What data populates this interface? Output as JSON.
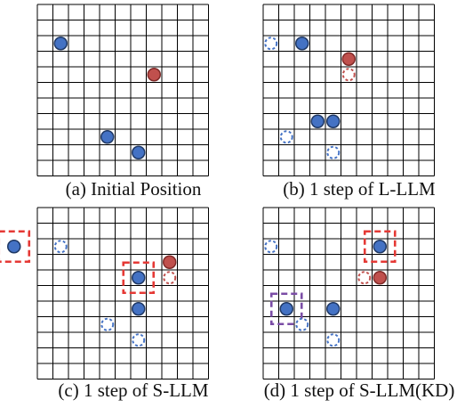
{
  "figure": {
    "colors": {
      "grid": "#000000",
      "agent_fill": "#4472C4",
      "agent_stroke": "#1F3864",
      "target_fill": "#C0504D",
      "target_stroke": "#7F2A28",
      "ghost_agent": "#4472C4",
      "ghost_target": "#C0504D",
      "highlight_red": "#E53935",
      "highlight_purple": "#7B4DA6"
    },
    "panels": [
      {
        "id": "a",
        "caption": "(a) Initial Position",
        "agents": [
          [
            1.5,
            2.5
          ],
          [
            4.5,
            8.5
          ],
          [
            6.5,
            9.5
          ]
        ],
        "targets": [
          [
            7.5,
            4.5
          ]
        ],
        "ghost_agents": [],
        "ghost_targets": [],
        "highlights": []
      },
      {
        "id": "b",
        "caption": "(b) 1 step of L-LLM",
        "agents": [
          [
            2.5,
            2.5
          ],
          [
            3.5,
            7.5
          ],
          [
            4.5,
            7.5
          ]
        ],
        "targets": [
          [
            5.5,
            3.5
          ]
        ],
        "ghost_agents": [
          [
            0.5,
            2.5
          ],
          [
            1.5,
            8.5
          ],
          [
            4.5,
            9.5
          ]
        ],
        "ghost_targets": [
          [
            5.5,
            4.5
          ]
        ],
        "highlights": []
      },
      {
        "id": "c",
        "caption": "(c) 1 step of S-LLM",
        "agents": [
          [
            -1.5,
            2.5
          ],
          [
            6.5,
            4.5
          ],
          [
            6.5,
            6.5
          ]
        ],
        "targets": [
          [
            8.5,
            3.5
          ]
        ],
        "ghost_agents": [
          [
            1.5,
            2.5
          ],
          [
            4.5,
            7.5
          ],
          [
            6.5,
            8.5
          ]
        ],
        "ghost_targets": [
          [
            8.5,
            4.5
          ]
        ],
        "highlights": [
          {
            "color": "red",
            "center": [
              -1.5,
              2.5
            ]
          },
          {
            "color": "red",
            "center": [
              6.5,
              4.5
            ]
          }
        ]
      },
      {
        "id": "d",
        "caption": "(d) 1 step of S-LLM(KD)",
        "agents": [
          [
            7.5,
            2.5
          ],
          [
            1.5,
            6.5
          ],
          [
            4.5,
            6.5
          ]
        ],
        "targets": [
          [
            7.5,
            4.5
          ]
        ],
        "ghost_agents": [
          [
            0.5,
            2.5
          ],
          [
            2.5,
            7.5
          ],
          [
            4.5,
            8.5
          ]
        ],
        "ghost_targets": [
          [
            6.5,
            4.5
          ]
        ],
        "highlights": [
          {
            "color": "red",
            "center": [
              7.5,
              2.5
            ]
          },
          {
            "color": "purple",
            "center": [
              1.5,
              6.5
            ]
          }
        ]
      }
    ]
  }
}
